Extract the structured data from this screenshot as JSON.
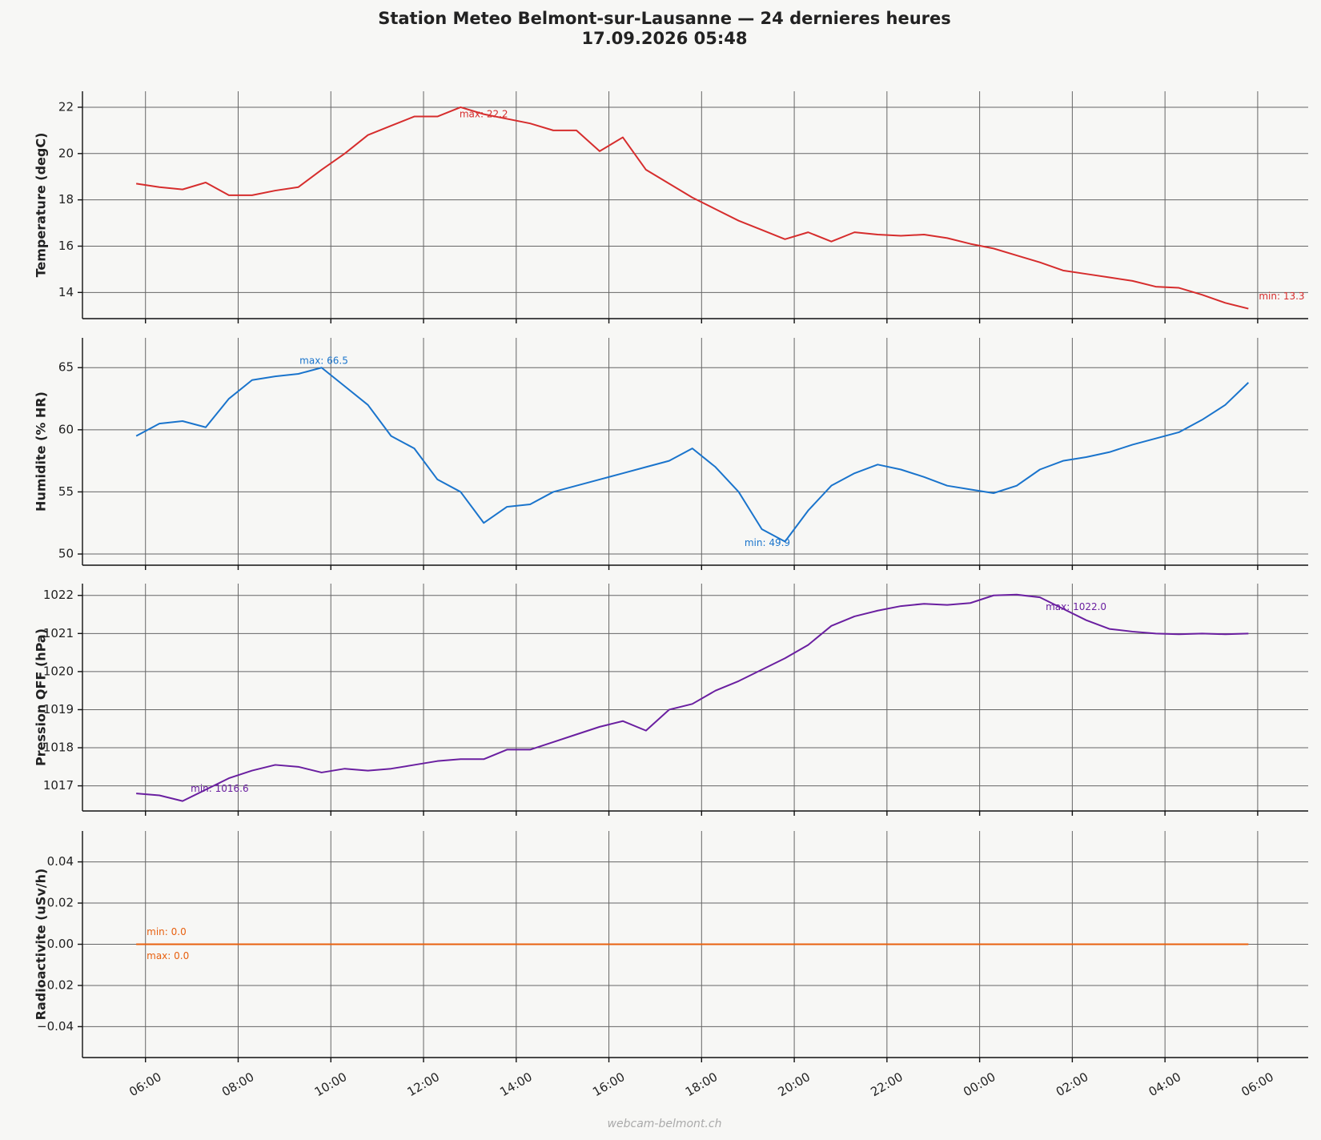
{
  "title": "Station Meteo Belmont-sur-Lausanne — 24 dernieres heures",
  "subtitle": "17.09.2026 05:48",
  "footer": "webcam-belmont.ch",
  "chart_data": [
    {
      "type": "line",
      "ylabel": "Temperature (degC)",
      "color": "#d62d2d",
      "grid": true,
      "x": [
        -0.2,
        0.3,
        0.8,
        1.3,
        1.8,
        2.3,
        2.8,
        3.3,
        3.8,
        4.3,
        4.8,
        5.3,
        5.8,
        6.3,
        6.8,
        7.3,
        7.8,
        8.3,
        8.8,
        9.3,
        9.8,
        10.3,
        10.8,
        11.3,
        11.8,
        12.3,
        12.8,
        13.3,
        13.8,
        14.3,
        14.8,
        15.3,
        15.8,
        16.3,
        16.8,
        17.3,
        17.8,
        18.3,
        18.8,
        19.3,
        19.8,
        20.3,
        20.8,
        21.3,
        21.8,
        22.3,
        22.8,
        23.3,
        23.8
      ],
      "values": [
        18.7,
        18.55,
        18.45,
        18.75,
        18.2,
        18.2,
        18.4,
        18.55,
        19.3,
        20.0,
        20.8,
        21.2,
        21.6,
        21.6,
        22.0,
        21.7,
        21.5,
        21.3,
        21.0,
        21.0,
        20.1,
        20.7,
        19.3,
        18.7,
        18.1,
        17.6,
        17.1,
        16.7,
        16.3,
        16.6,
        16.2,
        16.6,
        16.5,
        16.45,
        16.5,
        16.35,
        16.1,
        15.9,
        15.6,
        15.3,
        14.95,
        14.8,
        14.65,
        14.5,
        14.25,
        14.2,
        13.9,
        13.55,
        13.3
      ],
      "xlim": [
        -1.36,
        25.09
      ],
      "ylim": [
        12.87,
        22.69
      ],
      "yticks": [
        14,
        16,
        18,
        20,
        22
      ],
      "annotations": {
        "max": {
          "text": "max: 22.2",
          "x": 6.55,
          "y": 22.2
        },
        "min": {
          "text": "min: 13.3",
          "x": 23.8,
          "y": 13.3
        }
      }
    },
    {
      "type": "line",
      "ylabel": "Humidite (% HR)",
      "color": "#1a74cc",
      "grid": true,
      "x": [
        -0.2,
        0.3,
        0.8,
        1.3,
        1.8,
        2.3,
        2.8,
        3.3,
        3.8,
        4.3,
        4.8,
        5.3,
        5.8,
        6.3,
        6.8,
        7.3,
        7.8,
        8.3,
        8.8,
        9.3,
        9.8,
        10.3,
        10.8,
        11.3,
        11.8,
        12.3,
        12.8,
        13.3,
        13.8,
        14.3,
        14.8,
        15.3,
        15.8,
        16.3,
        16.8,
        17.3,
        17.8,
        18.3,
        18.8,
        19.3,
        19.8,
        20.3,
        20.8,
        21.3,
        21.8,
        22.3,
        22.8,
        23.3,
        23.8
      ],
      "values": [
        59.5,
        60.5,
        60.7,
        60.2,
        62.5,
        64.0,
        64.3,
        64.5,
        65.0,
        63.5,
        62.0,
        59.5,
        58.5,
        56.0,
        55.0,
        52.5,
        53.8,
        54.0,
        55.0,
        55.5,
        56.0,
        56.5,
        57.0,
        57.5,
        58.5,
        57.0,
        55.0,
        52.0,
        51.0,
        53.5,
        55.5,
        56.5,
        57.2,
        56.8,
        56.2,
        55.5,
        55.2,
        54.9,
        55.5,
        56.8,
        57.5,
        57.8,
        58.2,
        58.8,
        59.3,
        59.8,
        60.8,
        62.0,
        63.8
      ],
      "xlim": [
        -1.36,
        25.09
      ],
      "ylim": [
        49.1,
        67.4
      ],
      "yticks": [
        50,
        55,
        60,
        65
      ],
      "annotations": {
        "max": {
          "text": "max: 66.5",
          "x": 3.1,
          "y": 66.5
        },
        "min": {
          "text": "min: 49.9",
          "x": 12.7,
          "y": 49.9
        }
      }
    },
    {
      "type": "line",
      "ylabel": "Pression QFF (hPa)",
      "color": "#6a1fa0",
      "grid": true,
      "x": [
        -0.2,
        0.3,
        0.8,
        1.3,
        1.8,
        2.3,
        2.8,
        3.3,
        3.8,
        4.3,
        4.8,
        5.3,
        5.8,
        6.3,
        6.8,
        7.3,
        7.8,
        8.3,
        8.8,
        9.3,
        9.8,
        10.3,
        10.8,
        11.3,
        11.8,
        12.3,
        12.8,
        13.3,
        13.8,
        14.3,
        14.8,
        15.3,
        15.8,
        16.3,
        16.8,
        17.3,
        17.8,
        18.3,
        18.8,
        19.3,
        19.8,
        20.3,
        20.8,
        21.3,
        21.8,
        22.3,
        22.8,
        23.3,
        23.8
      ],
      "values": [
        1016.8,
        1016.75,
        1016.6,
        1016.9,
        1017.2,
        1017.4,
        1017.55,
        1017.5,
        1017.35,
        1017.45,
        1017.4,
        1017.45,
        1017.55,
        1017.65,
        1017.7,
        1017.7,
        1017.95,
        1017.95,
        1018.15,
        1018.35,
        1018.55,
        1018.7,
        1018.45,
        1019.0,
        1019.15,
        1019.5,
        1019.75,
        1020.05,
        1020.35,
        1020.7,
        1021.2,
        1021.45,
        1021.6,
        1021.72,
        1021.78,
        1021.75,
        1021.8,
        1022.0,
        1022.02,
        1021.95,
        1021.65,
        1021.35,
        1021.12,
        1021.05,
        1021.0,
        1020.98,
        1021.0,
        1020.98,
        1021.0
      ],
      "xlim": [
        -1.36,
        25.09
      ],
      "ylim": [
        1016.34,
        1022.31
      ],
      "yticks": [
        1017,
        1018,
        1019,
        1020,
        1021,
        1022
      ],
      "annotations": {
        "max": {
          "text": "max: 1022.0",
          "x": 19.2,
          "y": 1022.0
        },
        "min": {
          "text": "min: 1016.6",
          "x": 0.75,
          "y": 1016.6
        }
      }
    },
    {
      "type": "line",
      "ylabel": "Radioactivite (uSv/h)",
      "color": "#e8600f",
      "grid": true,
      "x": [
        -0.2,
        0.3,
        0.8,
        1.3,
        1.8,
        2.3,
        2.8,
        3.3,
        3.8,
        4.3,
        4.8,
        5.3,
        5.8,
        6.3,
        6.8,
        7.3,
        7.8,
        8.3,
        8.8,
        9.3,
        9.8,
        10.3,
        10.8,
        11.3,
        11.8,
        12.3,
        12.8,
        13.3,
        13.8,
        14.3,
        14.8,
        15.3,
        15.8,
        16.3,
        16.8,
        17.3,
        17.8,
        18.3,
        18.8,
        19.3,
        19.8,
        20.3,
        20.8,
        21.3,
        21.8,
        22.3,
        22.8,
        23.3,
        23.8
      ],
      "values": [
        0,
        0,
        0,
        0,
        0,
        0,
        0,
        0,
        0,
        0,
        0,
        0,
        0,
        0,
        0,
        0,
        0,
        0,
        0,
        0,
        0,
        0,
        0,
        0,
        0,
        0,
        0,
        0,
        0,
        0,
        0,
        0,
        0,
        0,
        0,
        0,
        0,
        0,
        0,
        0,
        0,
        0,
        0,
        0,
        0,
        0,
        0,
        0,
        0
      ],
      "xlim": [
        -1.36,
        25.09
      ],
      "ylim": [
        -0.055,
        0.055
      ],
      "yticks": [
        {
          "value": -0.04,
          "label": "−0.04"
        },
        {
          "value": -0.02,
          "label": "−0.02"
        },
        {
          "value": 0,
          "label": "0.00"
        },
        0.02,
        0.04
      ],
      "xticks": [
        {
          "value": 0,
          "label": "06:00"
        },
        {
          "value": 2,
          "label": "08:00"
        },
        {
          "value": 4,
          "label": "10:00"
        },
        {
          "value": 6,
          "label": "12:00"
        },
        {
          "value": 8,
          "label": "14:00"
        },
        {
          "value": 10,
          "label": "16:00"
        },
        {
          "value": 12,
          "label": "18:00"
        },
        {
          "value": 14,
          "label": "20:00"
        },
        {
          "value": 16,
          "label": "22:00"
        },
        {
          "value": 18,
          "label": "00:00"
        },
        {
          "value": 20,
          "label": "02:00"
        },
        {
          "value": 22,
          "label": "04:00"
        },
        {
          "value": 24,
          "label": "06:00"
        }
      ],
      "annotations": {
        "min": {
          "text": "min: 0.0",
          "x": -0.2,
          "y": 0
        },
        "max": {
          "text": "max: 0.0",
          "x": -0.2,
          "y": 0
        }
      }
    }
  ]
}
